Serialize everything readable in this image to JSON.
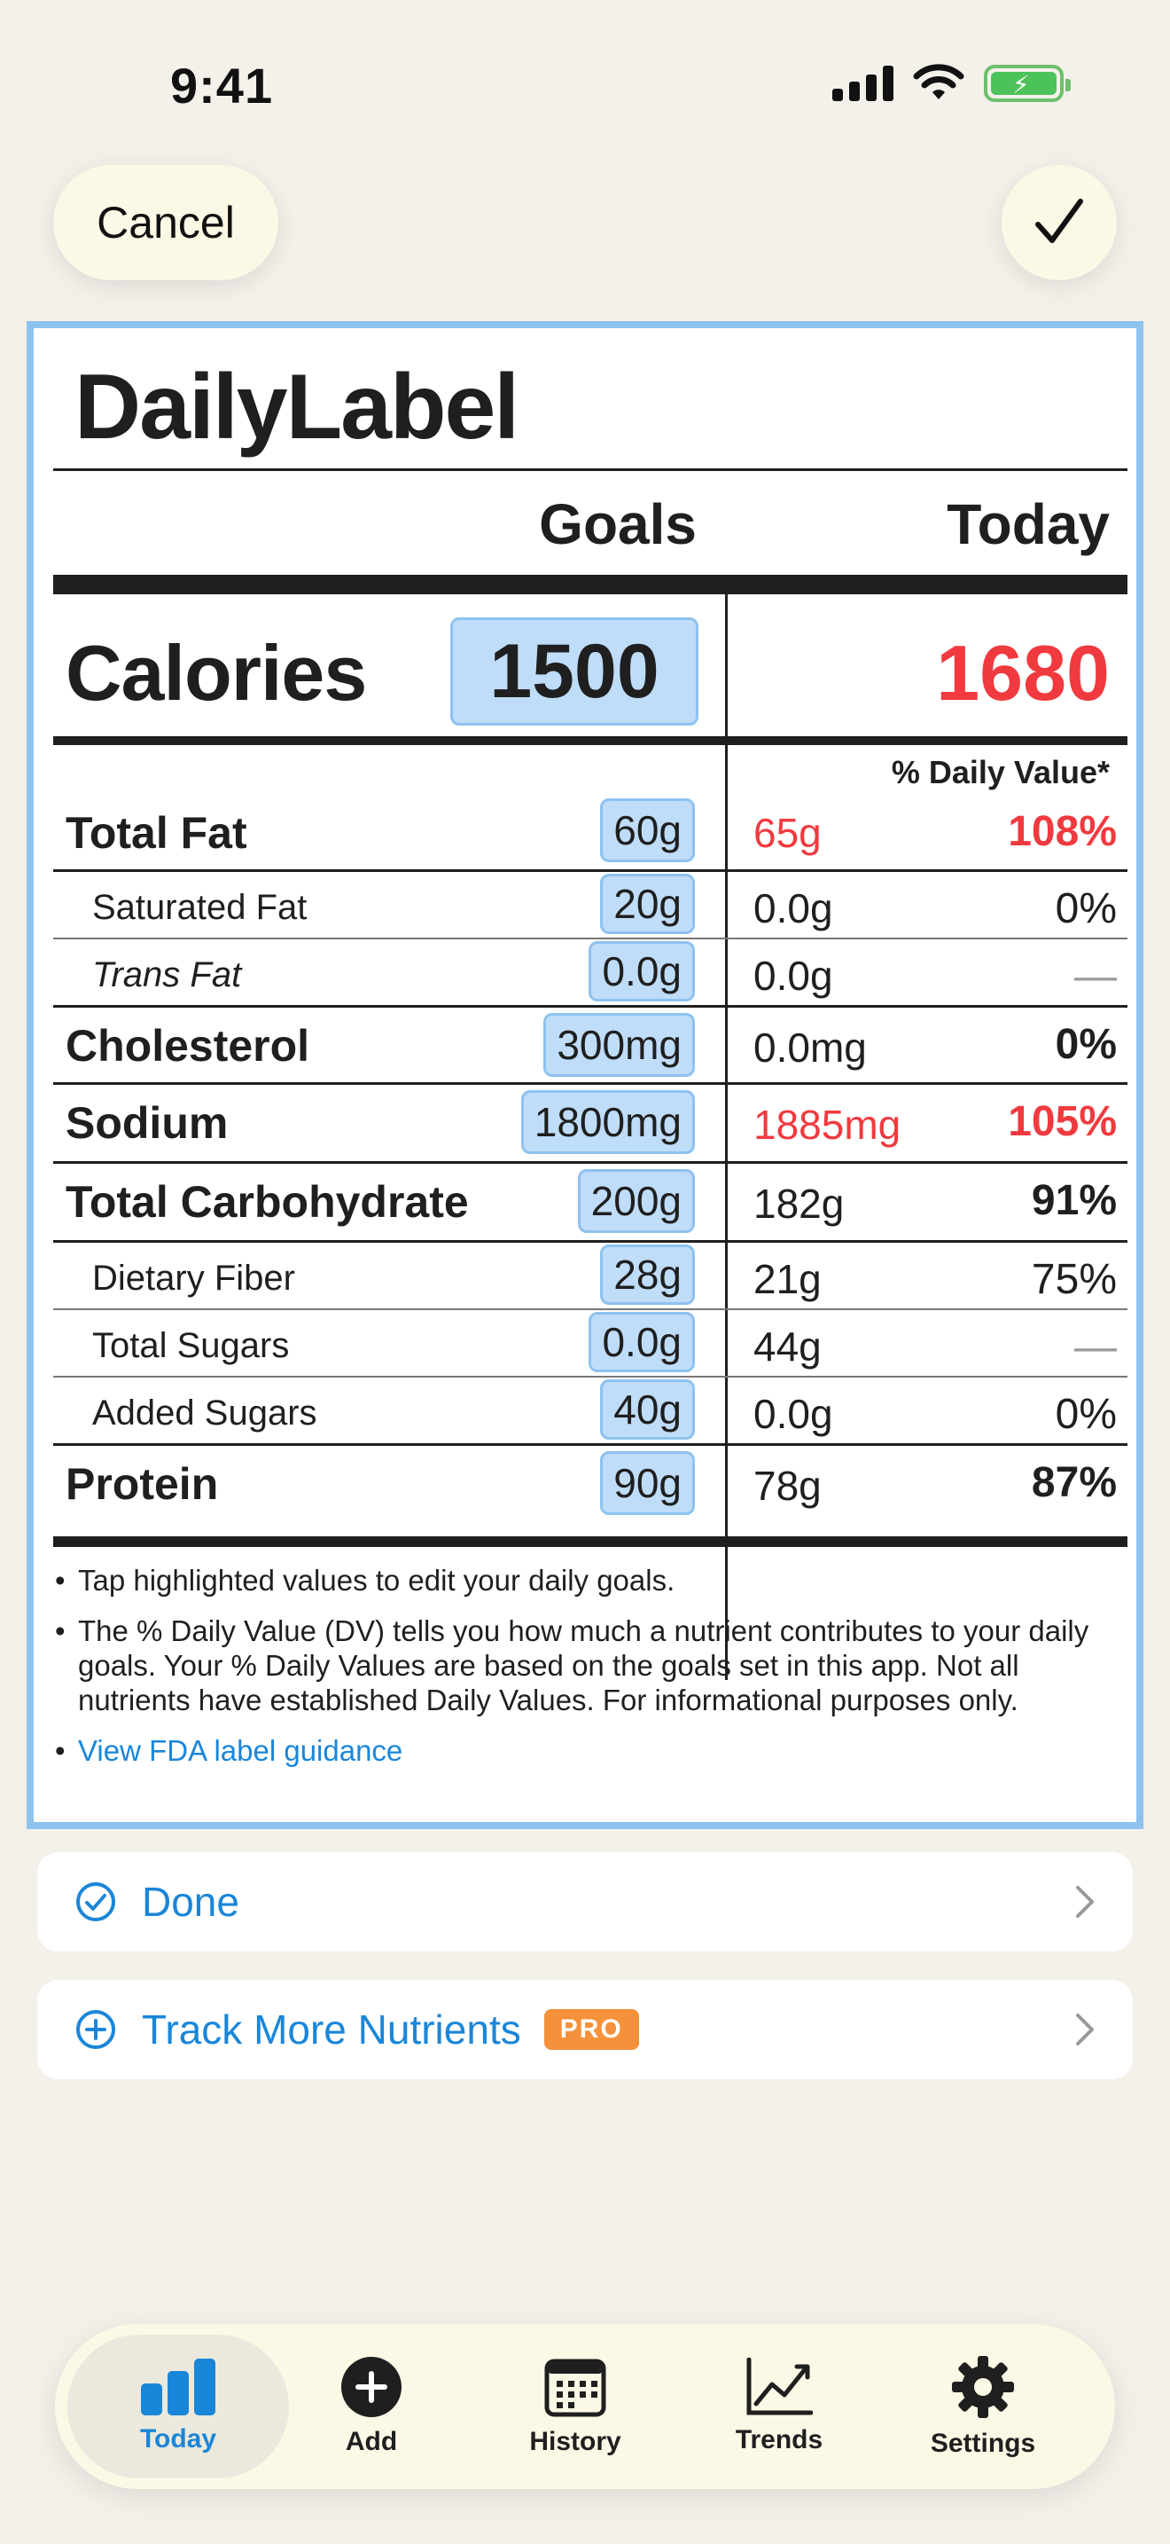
{
  "status": {
    "time": "9:41"
  },
  "header": {
    "cancel_label": "Cancel"
  },
  "label": {
    "title": "DailyLabel",
    "col_goals": "Goals",
    "col_today": "Today",
    "calories": {
      "name": "Calories",
      "goal": "1500",
      "today": "1680"
    },
    "dv_header": "% Daily Value*",
    "rows": [
      {
        "name": "Total Fat",
        "goal": "60g",
        "today": "65g",
        "pct": "108%"
      },
      {
        "name": "Saturated Fat",
        "goal": "20g",
        "today": "0.0g",
        "pct": "0%"
      },
      {
        "name": "Trans Fat",
        "goal": "0.0g",
        "today": "0.0g",
        "pct": "—"
      },
      {
        "name": "Cholesterol",
        "goal": "300mg",
        "today": "0.0mg",
        "pct": "0%"
      },
      {
        "name": "Sodium",
        "goal": "1800mg",
        "today": "1885mg",
        "pct": "105%"
      },
      {
        "name": "Total Carbohydrate",
        "goal": "200g",
        "today": "182g",
        "pct": "91%"
      },
      {
        "name": "Dietary Fiber",
        "goal": "28g",
        "today": "21g",
        "pct": "75%"
      },
      {
        "name": "Total Sugars",
        "goal": "0.0g",
        "today": "44g",
        "pct": "—"
      },
      {
        "name": "Added Sugars",
        "goal": "40g",
        "today": "0.0g",
        "pct": "0%"
      },
      {
        "name": "Protein",
        "goal": "90g",
        "today": "78g",
        "pct": "87%"
      }
    ],
    "notes": [
      "Tap highlighted values to edit your daily goals.",
      "The % Daily Value (DV) tells you how much a nutrient contributes to your daily goals. Your % Daily Values are based on the goals set in this app. Not all nutrients have established Daily Values. For informational purposes only."
    ],
    "fda_link": "View FDA label guidance"
  },
  "actions": {
    "done_label": "Done",
    "track_label": "Track More Nutrients",
    "pro_badge": "PRO"
  },
  "tabs": {
    "today": "Today",
    "add": "Add",
    "history": "History",
    "trends": "Trends",
    "settings": "Settings"
  },
  "colors": {
    "accent": "#1a86d9",
    "over_goal": "#f03a3f",
    "goal_highlight": "#bfdcf8",
    "pro": "#f4913a",
    "background": "#f4f0ea"
  }
}
